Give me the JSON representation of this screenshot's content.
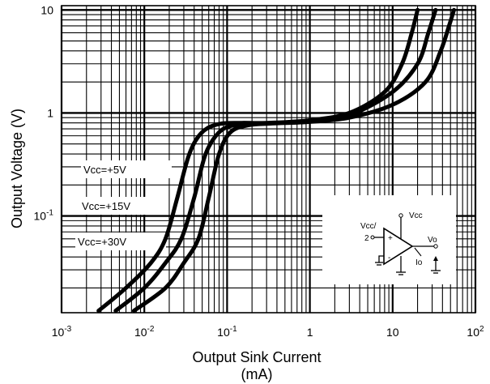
{
  "chart_data": {
    "type": "line",
    "xscale": "log",
    "yscale": "log",
    "xlim": [
      0.001,
      100
    ],
    "ylim": [
      0.0115,
      11
    ],
    "xlabel_line1": "Output Sink Current",
    "xlabel_line2": "(mA)",
    "ylabel": "Output Voltage  (V)",
    "grid": true,
    "x_tick_labels": [
      {
        "x": 0.001,
        "base": "10",
        "exp": "-3"
      },
      {
        "x": 0.01,
        "base": "10",
        "exp": "-2"
      },
      {
        "x": 0.1,
        "base": "10",
        "exp": "-1"
      },
      {
        "x": 1,
        "base": "1",
        "exp": ""
      },
      {
        "x": 10,
        "base": "10",
        "exp": ""
      },
      {
        "x": 100,
        "base": "10",
        "exp": "2"
      }
    ],
    "y_tick_labels": [
      {
        "y": 10,
        "base": "10",
        "exp": ""
      },
      {
        "y": 1,
        "base": "1",
        "exp": ""
      },
      {
        "y": 0.1,
        "base": "10",
        "exp": "-1"
      }
    ],
    "series": [
      {
        "name": "Vcc=+5V",
        "x": [
          0.0028,
          0.006,
          0.012,
          0.018,
          0.025,
          0.035,
          0.05,
          0.08,
          0.15,
          0.3,
          1,
          3,
          8,
          13,
          17,
          20
        ],
        "y": [
          0.012,
          0.02,
          0.035,
          0.06,
          0.15,
          0.4,
          0.65,
          0.78,
          0.8,
          0.8,
          0.85,
          1.0,
          1.6,
          3,
          6,
          10
        ]
      },
      {
        "name": "Vcc=+15V",
        "x": [
          0.0045,
          0.01,
          0.018,
          0.028,
          0.04,
          0.055,
          0.08,
          0.12,
          0.2,
          0.4,
          1,
          3,
          10,
          20,
          27,
          33
        ],
        "y": [
          0.012,
          0.02,
          0.035,
          0.06,
          0.15,
          0.4,
          0.65,
          0.76,
          0.79,
          0.8,
          0.84,
          0.95,
          1.6,
          3,
          6,
          10
        ]
      },
      {
        "name": "Vcc=+30V",
        "x": [
          0.0075,
          0.018,
          0.03,
          0.045,
          0.06,
          0.08,
          0.11,
          0.18,
          0.35,
          1,
          3,
          10,
          25,
          38,
          48,
          55
        ],
        "y": [
          0.012,
          0.02,
          0.035,
          0.06,
          0.15,
          0.4,
          0.65,
          0.76,
          0.79,
          0.82,
          0.9,
          1.2,
          2,
          4,
          7,
          10
        ]
      }
    ],
    "annotations": [
      "Vcc=+5V",
      "Vcc=+15V",
      "Vcc=+30V"
    ]
  },
  "inset": {
    "vcc_slash_label": "Vcc/",
    "pin2_label": "2",
    "vcc_label": "Vcc",
    "vo_label": "Vo",
    "io_label": "Io",
    "plus_sign": "+",
    "minus_sign": "-"
  }
}
